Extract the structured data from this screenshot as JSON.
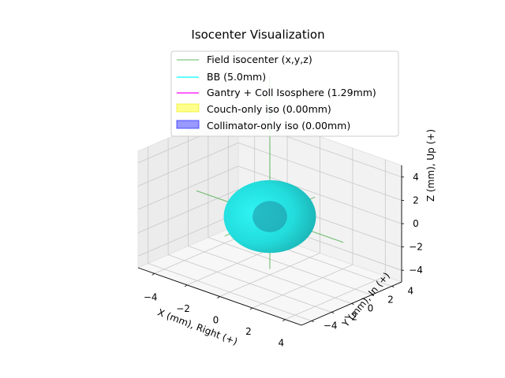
{
  "chart_data": {
    "type": "3d-surface",
    "title": "Isocenter Visualization",
    "xlabel": "X (mm), Right (+)",
    "ylabel": "Y (mm), In (+)",
    "zlabel": "Z (mm), Up (+)",
    "xlim": [
      -5,
      5
    ],
    "ylim": [
      -5,
      5
    ],
    "zlim": [
      -5,
      5
    ],
    "x_ticks": [
      -4,
      -2,
      0,
      2,
      4
    ],
    "y_ticks": [
      -4,
      -2,
      0,
      2,
      4
    ],
    "z_ticks": [
      -4,
      -2,
      0,
      2,
      4
    ],
    "x_tick_labels": [
      "−4",
      "−2",
      "0",
      "2",
      "4"
    ],
    "y_tick_labels": [
      "−4",
      "−2",
      "0",
      "2",
      "4"
    ],
    "z_tick_labels": [
      "−4",
      "−2",
      "0",
      "2",
      "4"
    ],
    "grid": true,
    "legend_position": "top-center",
    "field_isocenter": {
      "name": "Field isocenter (x,y,z)",
      "x": 0,
      "y": 0,
      "z": 0,
      "color": "#2ca02c"
    },
    "bb": {
      "name": "BB (5.0mm)",
      "x": 0,
      "y": 0,
      "z": 0,
      "diameter_mm": 5.0,
      "color": "#00ffff"
    },
    "gantry_coll_isosphere": {
      "name": "Gantry + Coll Isosphere (1.29mm)",
      "diameter_mm": 1.29,
      "color": "#ff00ff"
    },
    "couch_iso": {
      "name": "Couch-only iso (0.00mm)",
      "size_mm": 0.0,
      "color": "#ffff00"
    },
    "collimator_iso": {
      "name": "Collimator-only iso (0.00mm)",
      "size_mm": 0.0,
      "color": "#0000ff"
    },
    "legend": [
      {
        "label": "Field isocenter (x,y,z)",
        "kind": "line",
        "color": "#2ca02c"
      },
      {
        "label": "BB (5.0mm)",
        "kind": "line",
        "color": "#00ffff"
      },
      {
        "label": "Gantry + Coll Isosphere (1.29mm)",
        "kind": "line",
        "color": "#ff00ff"
      },
      {
        "label": "Couch-only iso (0.00mm)",
        "kind": "patch",
        "color": "#ffff00"
      },
      {
        "label": "Collimator-only iso (0.00mm)",
        "kind": "patch",
        "color": "#0000ff"
      }
    ]
  }
}
